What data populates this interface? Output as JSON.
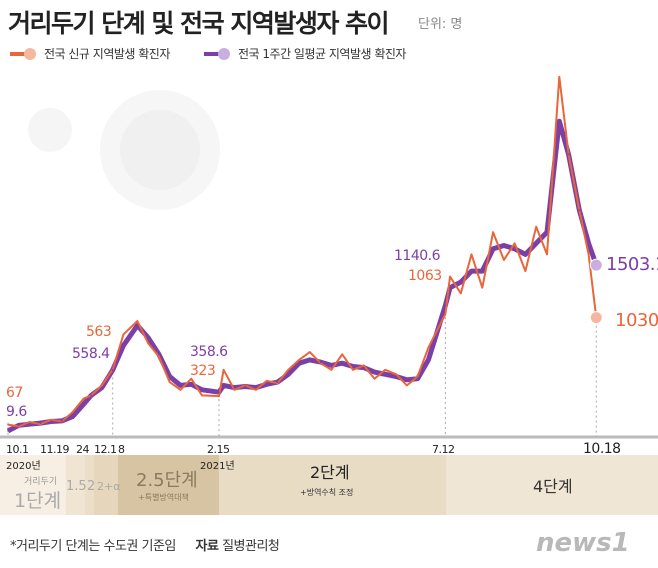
{
  "title": "거리두기 단계 및 전국 지역발생자 추이",
  "unit": "단위: 명",
  "footnote": "*거리두기 단계는 수도권 기준임",
  "source_label": "자료",
  "source": "질병관리청",
  "logo": "news1",
  "colors": {
    "daily": "#e8663a",
    "avg": "#7b3fa8",
    "daily_dot": "#f4b8a0",
    "avg_dot": "#c9aee0"
  },
  "chart_data": {
    "type": "line",
    "title": "거리두기 단계 및 전국 지역발생자 추이",
    "ylim": [
      0,
      3400
    ],
    "xlim": [
      "2020-10-01",
      "2021-10-25"
    ],
    "grid": false,
    "legend": "top-left",
    "x": [
      "2020-10-01",
      "2020-10-08",
      "2020-10-15",
      "2020-10-22",
      "2020-10-29",
      "2020-11-05",
      "2020-11-12",
      "2020-11-19",
      "2020-11-24",
      "2020-12-01",
      "2020-12-08",
      "2020-12-15",
      "2020-12-24",
      "2020-12-31",
      "2021-01-07",
      "2021-01-14",
      "2021-01-21",
      "2021-01-28",
      "2021-02-04",
      "2021-02-15",
      "2021-02-18",
      "2021-02-25",
      "2021-03-04",
      "2021-03-11",
      "2021-03-18",
      "2021-03-25",
      "2021-04-01",
      "2021-04-08",
      "2021-04-15",
      "2021-04-22",
      "2021-04-29",
      "2021-05-06",
      "2021-05-13",
      "2021-05-20",
      "2021-05-27",
      "2021-06-03",
      "2021-06-10",
      "2021-06-17",
      "2021-06-24",
      "2021-07-01",
      "2021-07-12",
      "2021-07-15",
      "2021-07-22",
      "2021-07-29",
      "2021-08-05",
      "2021-08-12",
      "2021-08-19",
      "2021-08-26",
      "2021-09-02",
      "2021-09-09",
      "2021-09-16",
      "2021-09-24",
      "2021-09-30",
      "2021-10-07",
      "2021-10-13",
      "2021-10-18"
    ],
    "series": [
      {
        "name": "전국 신규 지역발생 확진자",
        "values": [
          67,
          50,
          90,
          70,
          110,
          95,
          180,
          300,
          330,
          420,
          563,
          880,
          1000,
          800,
          680,
          450,
          380,
          480,
          330,
          323,
          560,
          380,
          420,
          380,
          460,
          440,
          560,
          650,
          720,
          620,
          560,
          700,
          560,
          600,
          480,
          560,
          520,
          420,
          500,
          760,
          1063,
          1400,
          1250,
          1600,
          1300,
          1800,
          1550,
          1700,
          1450,
          1850,
          1600,
          3200,
          2500,
          2000,
          1600,
          1030
        ]
      },
      {
        "name": "전국 1주간 일평균 지역발생 확진자",
        "values": [
          9.6,
          60,
          70,
          80,
          95,
          100,
          140,
          250,
          330,
          400,
          558.4,
          780,
          960,
          850,
          700,
          500,
          420,
          430,
          380,
          358.6,
          420,
          400,
          410,
          400,
          430,
          450,
          520,
          620,
          650,
          630,
          600,
          620,
          590,
          580,
          540,
          520,
          500,
          470,
          480,
          650,
          1140.6,
          1300,
          1350,
          1450,
          1450,
          1650,
          1680,
          1650,
          1600,
          1700,
          1800,
          2800,
          2500,
          2000,
          1700,
          1503.1
        ]
      }
    ],
    "annotations": [
      {
        "date": "2020-10-01",
        "daily": "67",
        "avg": "9.6"
      },
      {
        "date": "2020-12-08",
        "daily": "563",
        "avg": "558.4"
      },
      {
        "date": "2021-02-15",
        "daily": "323",
        "avg": "358.6"
      },
      {
        "date": "2021-07-12",
        "daily": "1063",
        "avg": "1140.6"
      },
      {
        "date": "2021-10-18",
        "daily": "1030",
        "avg": "1503.1"
      }
    ],
    "tick_labels": [
      "10.1",
      "11.19",
      "24",
      "12.1",
      "8",
      "2.15",
      "7.12",
      "10.18"
    ],
    "year_labels": [
      "2020년",
      "2021년"
    ]
  },
  "stages": [
    {
      "label": "1단계",
      "sub_top": "거리두기",
      "color": "#f7efe4"
    },
    {
      "label": "1.5",
      "color": "#f0e5d3"
    },
    {
      "label": "2",
      "color": "#ecdfca"
    },
    {
      "label": "2+α",
      "color": "#e6d6bc"
    },
    {
      "label": "2.5단계",
      "sub": "+특별방역대책",
      "color": "#d7c4a2"
    },
    {
      "label": "2단계",
      "sub": "+방역수칙 조정",
      "color": "#e8dcc5"
    },
    {
      "label": "4단계",
      "color": "#f0e6d5"
    }
  ]
}
